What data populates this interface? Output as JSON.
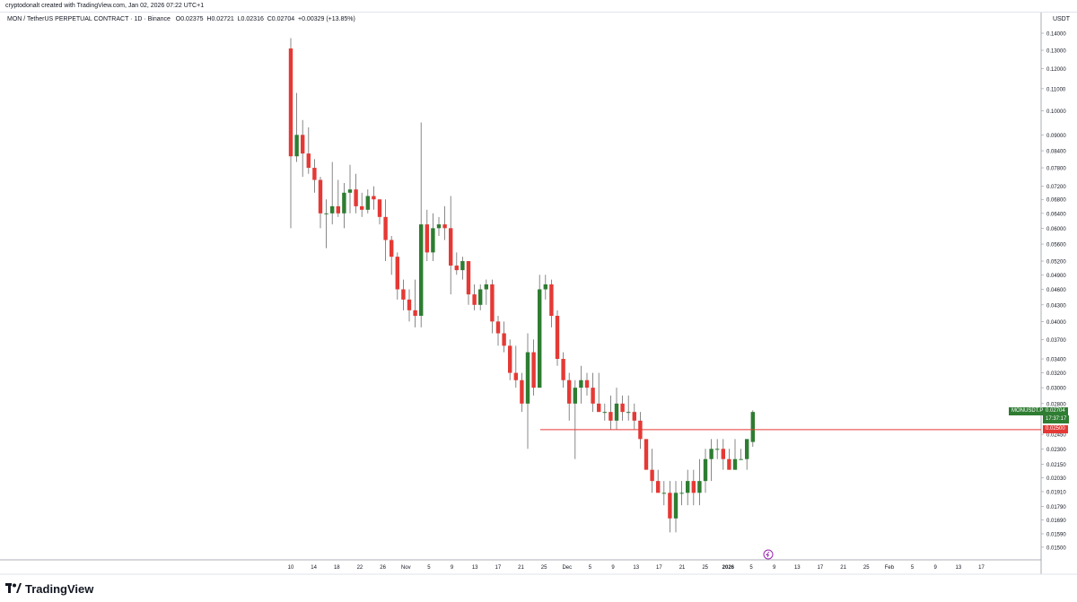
{
  "header": {
    "attribution": "cryptodonalt created with TradingView.com, Jan 02, 2026 07:22 UTC+1"
  },
  "legend": {
    "symbol": "MON / TetherUS PERPETUAL CONTRACT · 1D · Binance",
    "open": "O0.02375",
    "high": "H0.02721",
    "low": "L0.02316",
    "close": "C0.02704",
    "change": "+0.00329 (+13.85%)"
  },
  "price_axis": {
    "currency": "USDT"
  },
  "tags": {
    "symbol": "MONUSDT.P",
    "last_price": "0.02704",
    "countdown": "17:37:17",
    "level": "0.02500"
  },
  "footer": {
    "brand": "TradingView"
  },
  "colors": {
    "up": "#26a269",
    "up_fill": "#2e7d32",
    "down": "#e53935",
    "wick": "#555555",
    "level": "#e53935"
  },
  "chart_data": {
    "type": "candlestick",
    "y_scale": "log",
    "ylim": [
      0.0142,
      0.145
    ],
    "y_ticks": [
      "0.14000",
      "0.13000",
      "0.12000",
      "0.11000",
      "0.10000",
      "0.09000",
      "0.08400",
      "0.07800",
      "0.07200",
      "0.06800",
      "0.06400",
      "0.06000",
      "0.05600",
      "0.05200",
      "0.04900",
      "0.04600",
      "0.04300",
      "0.04000",
      "0.03700",
      "0.03400",
      "0.03200",
      "0.03000",
      "0.02800",
      "0.02450",
      "0.02300",
      "0.02150",
      "0.02030",
      "0.01910",
      "0.01790",
      "0.01690",
      "0.01590",
      "0.01500"
    ],
    "x_labels": [
      "10",
      "14",
      "18",
      "22",
      "26",
      "Nov",
      "5",
      "9",
      "13",
      "17",
      "21",
      "25",
      "Dec",
      "5",
      "9",
      "13",
      "17",
      "21",
      "25",
      "2026",
      "5",
      "9",
      "13",
      "17",
      "21",
      "25",
      "Feb",
      "5",
      "9",
      "13",
      "17"
    ],
    "x_label_bold": "2026",
    "horizontal_line": 0.025,
    "candles": [
      {
        "o": 0.131,
        "h": 0.137,
        "l": 0.06,
        "c": 0.082
      },
      {
        "o": 0.082,
        "h": 0.108,
        "l": 0.08,
        "c": 0.09
      },
      {
        "o": 0.09,
        "h": 0.096,
        "l": 0.075,
        "c": 0.083
      },
      {
        "o": 0.083,
        "h": 0.093,
        "l": 0.076,
        "c": 0.078
      },
      {
        "o": 0.078,
        "h": 0.081,
        "l": 0.07,
        "c": 0.074
      },
      {
        "o": 0.074,
        "h": 0.075,
        "l": 0.06,
        "c": 0.064
      },
      {
        "o": 0.064,
        "h": 0.068,
        "l": 0.055,
        "c": 0.064
      },
      {
        "o": 0.064,
        "h": 0.08,
        "l": 0.061,
        "c": 0.066
      },
      {
        "o": 0.066,
        "h": 0.074,
        "l": 0.063,
        "c": 0.064
      },
      {
        "o": 0.064,
        "h": 0.073,
        "l": 0.06,
        "c": 0.07
      },
      {
        "o": 0.07,
        "h": 0.079,
        "l": 0.064,
        "c": 0.071
      },
      {
        "o": 0.071,
        "h": 0.076,
        "l": 0.064,
        "c": 0.066
      },
      {
        "o": 0.066,
        "h": 0.07,
        "l": 0.063,
        "c": 0.065
      },
      {
        "o": 0.065,
        "h": 0.071,
        "l": 0.064,
        "c": 0.069
      },
      {
        "o": 0.069,
        "h": 0.072,
        "l": 0.065,
        "c": 0.068
      },
      {
        "o": 0.068,
        "h": 0.068,
        "l": 0.061,
        "c": 0.063
      },
      {
        "o": 0.063,
        "h": 0.068,
        "l": 0.052,
        "c": 0.057
      },
      {
        "o": 0.057,
        "h": 0.058,
        "l": 0.049,
        "c": 0.053
      },
      {
        "o": 0.053,
        "h": 0.054,
        "l": 0.044,
        "c": 0.046
      },
      {
        "o": 0.046,
        "h": 0.048,
        "l": 0.042,
        "c": 0.044
      },
      {
        "o": 0.044,
        "h": 0.046,
        "l": 0.04,
        "c": 0.042
      },
      {
        "o": 0.042,
        "h": 0.048,
        "l": 0.039,
        "c": 0.041
      },
      {
        "o": 0.041,
        "h": 0.095,
        "l": 0.039,
        "c": 0.061
      },
      {
        "o": 0.061,
        "h": 0.065,
        "l": 0.052,
        "c": 0.054
      },
      {
        "o": 0.054,
        "h": 0.064,
        "l": 0.052,
        "c": 0.06
      },
      {
        "o": 0.06,
        "h": 0.063,
        "l": 0.058,
        "c": 0.061
      },
      {
        "o": 0.061,
        "h": 0.066,
        "l": 0.057,
        "c": 0.06
      },
      {
        "o": 0.06,
        "h": 0.069,
        "l": 0.045,
        "c": 0.051
      },
      {
        "o": 0.051,
        "h": 0.054,
        "l": 0.049,
        "c": 0.05
      },
      {
        "o": 0.05,
        "h": 0.053,
        "l": 0.048,
        "c": 0.052
      },
      {
        "o": 0.052,
        "h": 0.052,
        "l": 0.043,
        "c": 0.045
      },
      {
        "o": 0.045,
        "h": 0.047,
        "l": 0.042,
        "c": 0.043
      },
      {
        "o": 0.043,
        "h": 0.047,
        "l": 0.042,
        "c": 0.046
      },
      {
        "o": 0.046,
        "h": 0.048,
        "l": 0.043,
        "c": 0.047
      },
      {
        "o": 0.047,
        "h": 0.048,
        "l": 0.038,
        "c": 0.04
      },
      {
        "o": 0.04,
        "h": 0.041,
        "l": 0.036,
        "c": 0.038
      },
      {
        "o": 0.038,
        "h": 0.04,
        "l": 0.035,
        "c": 0.036
      },
      {
        "o": 0.036,
        "h": 0.037,
        "l": 0.031,
        "c": 0.032
      },
      {
        "o": 0.032,
        "h": 0.036,
        "l": 0.03,
        "c": 0.031
      },
      {
        "o": 0.031,
        "h": 0.032,
        "l": 0.027,
        "c": 0.028
      },
      {
        "o": 0.028,
        "h": 0.038,
        "l": 0.023,
        "c": 0.035
      },
      {
        "o": 0.035,
        "h": 0.037,
        "l": 0.029,
        "c": 0.03
      },
      {
        "o": 0.03,
        "h": 0.049,
        "l": 0.03,
        "c": 0.046
      },
      {
        "o": 0.046,
        "h": 0.049,
        "l": 0.044,
        "c": 0.047
      },
      {
        "o": 0.047,
        "h": 0.048,
        "l": 0.039,
        "c": 0.041
      },
      {
        "o": 0.041,
        "h": 0.042,
        "l": 0.033,
        "c": 0.034
      },
      {
        "o": 0.034,
        "h": 0.035,
        "l": 0.03,
        "c": 0.031
      },
      {
        "o": 0.031,
        "h": 0.032,
        "l": 0.026,
        "c": 0.028
      },
      {
        "o": 0.028,
        "h": 0.031,
        "l": 0.022,
        "c": 0.03
      },
      {
        "o": 0.03,
        "h": 0.033,
        "l": 0.028,
        "c": 0.031
      },
      {
        "o": 0.031,
        "h": 0.032,
        "l": 0.029,
        "c": 0.03
      },
      {
        "o": 0.03,
        "h": 0.032,
        "l": 0.027,
        "c": 0.028
      },
      {
        "o": 0.028,
        "h": 0.032,
        "l": 0.027,
        "c": 0.027
      },
      {
        "o": 0.027,
        "h": 0.028,
        "l": 0.026,
        "c": 0.027
      },
      {
        "o": 0.027,
        "h": 0.029,
        "l": 0.025,
        "c": 0.026
      },
      {
        "o": 0.026,
        "h": 0.03,
        "l": 0.025,
        "c": 0.028
      },
      {
        "o": 0.028,
        "h": 0.029,
        "l": 0.026,
        "c": 0.027
      },
      {
        "o": 0.027,
        "h": 0.029,
        "l": 0.026,
        "c": 0.027
      },
      {
        "o": 0.027,
        "h": 0.028,
        "l": 0.025,
        "c": 0.026
      },
      {
        "o": 0.026,
        "h": 0.027,
        "l": 0.023,
        "c": 0.024
      },
      {
        "o": 0.024,
        "h": 0.024,
        "l": 0.021,
        "c": 0.021
      },
      {
        "o": 0.021,
        "h": 0.023,
        "l": 0.019,
        "c": 0.02
      },
      {
        "o": 0.02,
        "h": 0.021,
        "l": 0.019,
        "c": 0.019
      },
      {
        "o": 0.019,
        "h": 0.02,
        "l": 0.018,
        "c": 0.019
      },
      {
        "o": 0.019,
        "h": 0.02,
        "l": 0.016,
        "c": 0.017
      },
      {
        "o": 0.017,
        "h": 0.02,
        "l": 0.016,
        "c": 0.019
      },
      {
        "o": 0.019,
        "h": 0.02,
        "l": 0.018,
        "c": 0.019
      },
      {
        "o": 0.019,
        "h": 0.021,
        "l": 0.018,
        "c": 0.02
      },
      {
        "o": 0.02,
        "h": 0.021,
        "l": 0.018,
        "c": 0.019
      },
      {
        "o": 0.019,
        "h": 0.022,
        "l": 0.018,
        "c": 0.02
      },
      {
        "o": 0.02,
        "h": 0.023,
        "l": 0.019,
        "c": 0.022
      },
      {
        "o": 0.022,
        "h": 0.024,
        "l": 0.02,
        "c": 0.023
      },
      {
        "o": 0.023,
        "h": 0.024,
        "l": 0.022,
        "c": 0.023
      },
      {
        "o": 0.023,
        "h": 0.024,
        "l": 0.021,
        "c": 0.022
      },
      {
        "o": 0.022,
        "h": 0.023,
        "l": 0.021,
        "c": 0.021
      },
      {
        "o": 0.021,
        "h": 0.024,
        "l": 0.021,
        "c": 0.022
      },
      {
        "o": 0.022,
        "h": 0.023,
        "l": 0.022,
        "c": 0.022
      },
      {
        "o": 0.022,
        "h": 0.024,
        "l": 0.021,
        "c": 0.024
      },
      {
        "o": 0.0237,
        "h": 0.0272,
        "l": 0.0232,
        "c": 0.027
      }
    ]
  }
}
